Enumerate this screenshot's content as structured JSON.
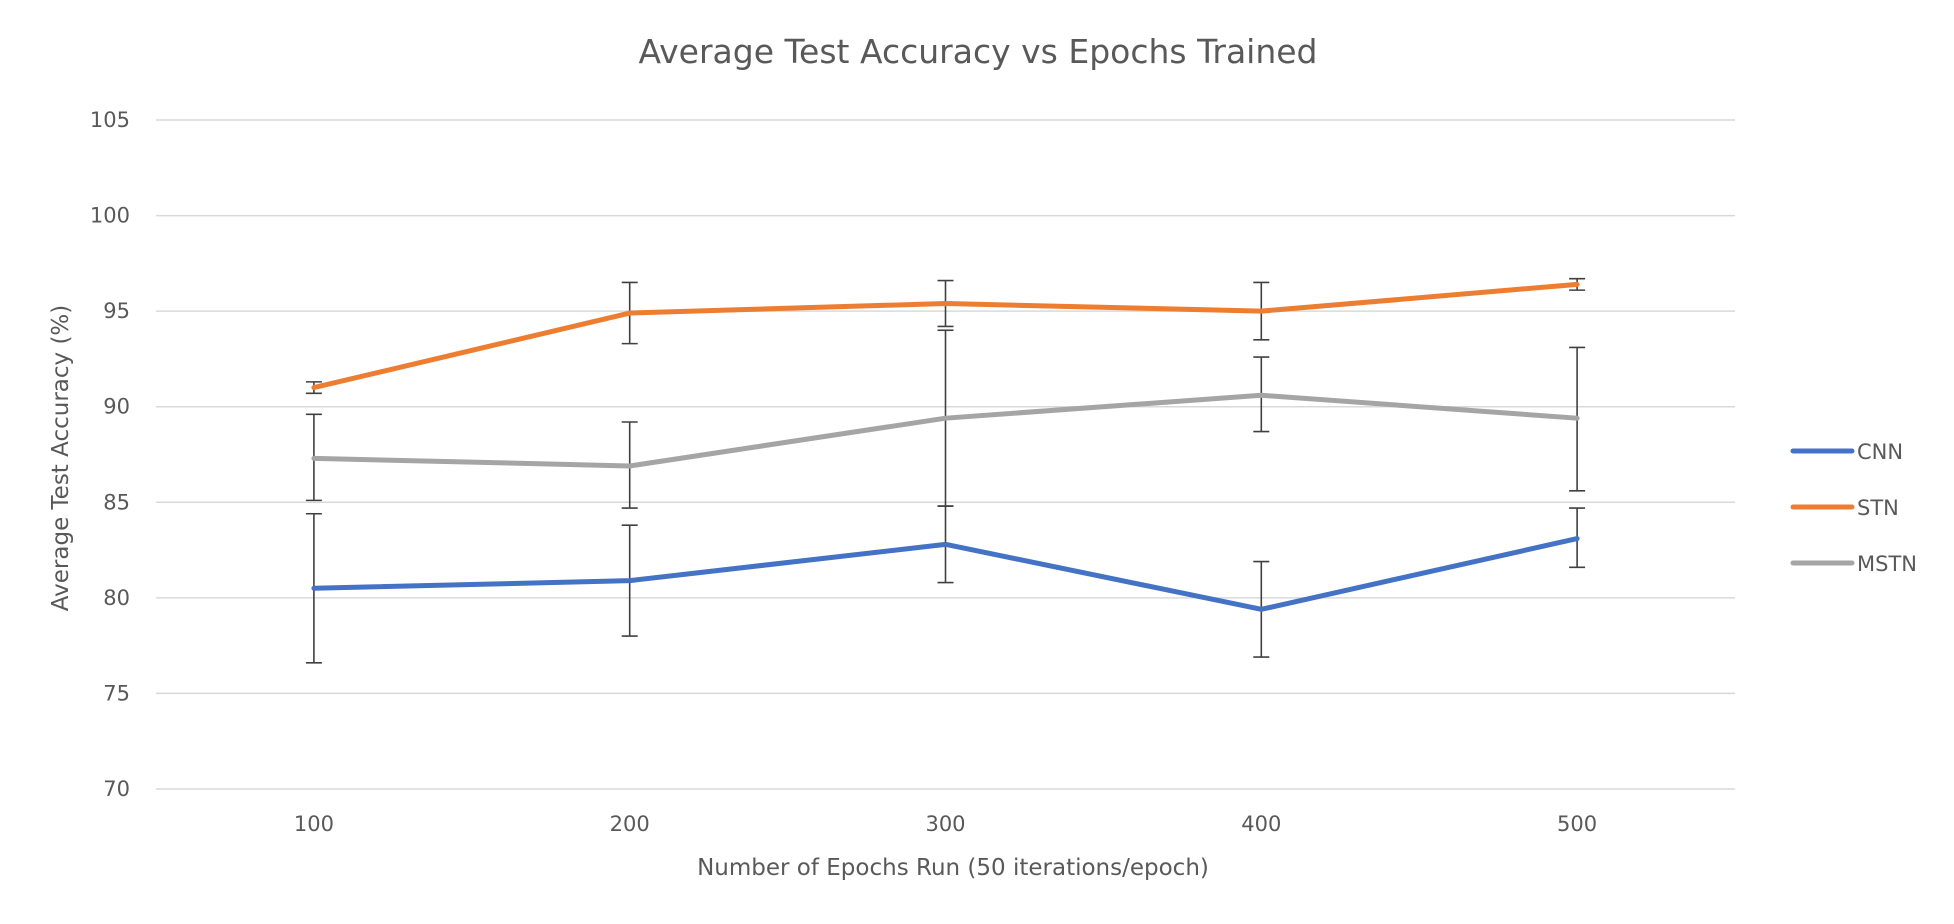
{
  "chart_data": {
    "type": "line",
    "title": "Average Test Accuracy vs Epochs Trained",
    "xlabel": "Number of Epochs Run (50 iterations/epoch)",
    "ylabel": "Average Test Accuracy (%)",
    "categories": [
      "100",
      "200",
      "300",
      "400",
      "500"
    ],
    "ylim": [
      70,
      105
    ],
    "yticks": [
      "70",
      "75",
      "80",
      "85",
      "90",
      "95",
      "100",
      "105"
    ],
    "grid": true,
    "legend_position": "right",
    "series": [
      {
        "name": "CNN",
        "color": "#4472c4",
        "values": [
          80.5,
          80.9,
          82.8,
          79.4,
          83.1
        ],
        "error_low": [
          76.6,
          78.0,
          80.8,
          76.9,
          81.6
        ],
        "error_high": [
          84.4,
          83.8,
          84.8,
          81.9,
          84.7
        ]
      },
      {
        "name": "STN",
        "color": "#ed7d31",
        "values": [
          91.0,
          94.9,
          95.4,
          95.0,
          96.4
        ],
        "error_low": [
          90.7,
          93.3,
          94.2,
          93.5,
          96.1
        ],
        "error_high": [
          91.3,
          96.5,
          96.6,
          96.5,
          96.7
        ]
      },
      {
        "name": "MSTN",
        "color": "#a5a5a5",
        "values": [
          87.3,
          86.9,
          89.4,
          90.6,
          89.4
        ],
        "error_low": [
          85.1,
          84.7,
          84.8,
          88.7,
          85.6
        ],
        "error_high": [
          89.6,
          89.2,
          94.0,
          92.6,
          93.1
        ]
      }
    ]
  }
}
